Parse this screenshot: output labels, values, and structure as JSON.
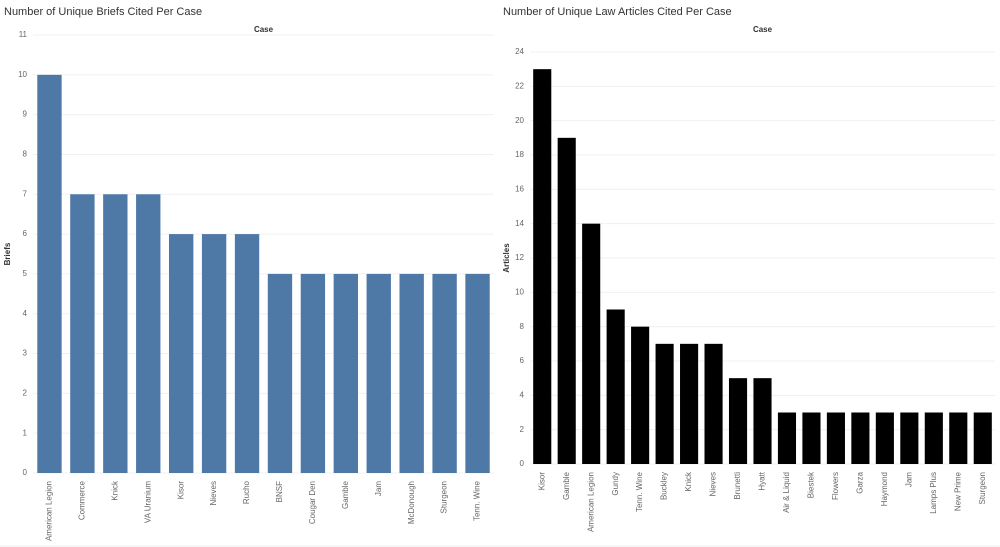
{
  "chart_data": [
    {
      "type": "bar",
      "title": "Number of Unique Briefs Cited Per Case",
      "x_header": "Case",
      "y_label": "Briefs",
      "categories": [
        "American Legion",
        "Commerce",
        "Knick",
        "VA Uranium",
        "Kisor",
        "Nieves",
        "Rucho",
        "BNSF",
        "Cougar Den",
        "Gamble",
        "Jam",
        "McDonough",
        "Sturgeon",
        "Tenn. Wine"
      ],
      "values": [
        10,
        7,
        7,
        7,
        6,
        6,
        6,
        5,
        5,
        5,
        5,
        5,
        5,
        5
      ],
      "color": "#4e79a7",
      "ylim": [
        0,
        11
      ],
      "yticks": [
        0,
        1,
        2,
        3,
        4,
        5,
        6,
        7,
        8,
        9,
        10,
        11
      ],
      "grid": true
    },
    {
      "type": "bar",
      "title": "Number of Unique Law Articles Cited Per Case",
      "x_header": "Case",
      "y_label": "Articles",
      "categories": [
        "Kisor",
        "Gamble",
        "American Legion",
        "Gundy",
        "Tenn. Wine",
        "Buckley",
        "Knick",
        "Nieves",
        "Brunetti",
        "Hyatt",
        "Air & Liquid",
        "Biestek",
        "Flowers",
        "Garza",
        "Haymond",
        "Jam",
        "Lamps Plus",
        "New Prime",
        "Sturgeon"
      ],
      "values": [
        23,
        19,
        14,
        9,
        8,
        7,
        7,
        7,
        5,
        5,
        3,
        3,
        3,
        3,
        3,
        3,
        3,
        3,
        3
      ],
      "color": "#000000",
      "ylim": [
        0,
        24
      ],
      "yticks": [
        0,
        2,
        4,
        6,
        8,
        10,
        12,
        14,
        16,
        18,
        20,
        22,
        24
      ],
      "grid": true
    }
  ]
}
